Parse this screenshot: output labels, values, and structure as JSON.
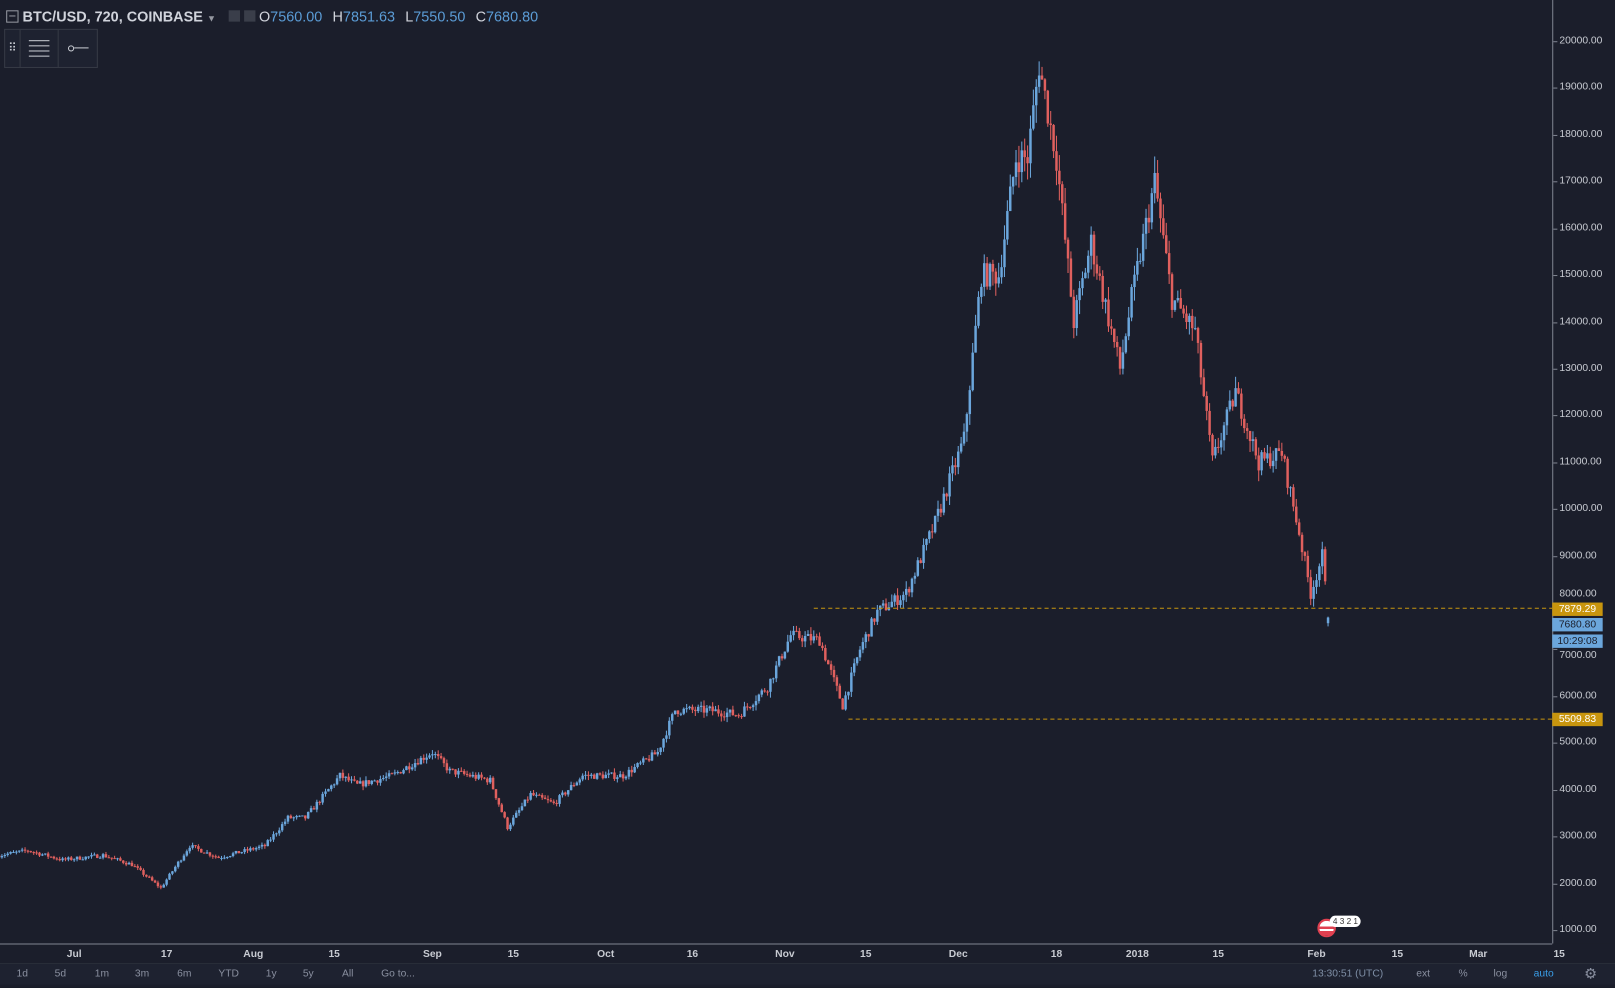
{
  "header": {
    "symbol": "BTC/USD, 720, COINBASE",
    "o_label": "O",
    "o": "7560.00",
    "h_label": "H",
    "h": "7851.63",
    "l_label": "L",
    "l": "7550.50",
    "c_label": "C",
    "c": "7680.80"
  },
  "price_axis": {
    "labels": [
      "20000.00",
      "19000.00",
      "18000.00",
      "17000.00",
      "16000.00",
      "15000.00",
      "14000.00",
      "13000.00",
      "12000.00",
      "11000.00",
      "10000.00",
      "9000.00",
      "8000.00",
      "7000.00",
      "6000.00",
      "5000.00",
      "4000.00",
      "3000.00",
      "2000.00",
      "1000.00"
    ],
    "tags": [
      {
        "text": "7879.29",
        "value": 7879.29,
        "color": "#c8950e"
      },
      {
        "text": "7680.80",
        "value": 7680.8,
        "color": "#6ba6dc"
      },
      {
        "text": "10:29:08",
        "value": 7400,
        "color": "#6ba6dc"
      },
      {
        "text": "5509.83",
        "value": 5509.83,
        "color": "#c8950e"
      }
    ]
  },
  "time_axis": {
    "labels": [
      {
        "t": "Jul",
        "d": "2017-07-01"
      },
      {
        "t": "17",
        "d": "2017-07-17"
      },
      {
        "t": "Aug",
        "d": "2017-08-01"
      },
      {
        "t": "15",
        "d": "2017-08-15"
      },
      {
        "t": "Sep",
        "d": "2017-09-01"
      },
      {
        "t": "15",
        "d": "2017-09-15"
      },
      {
        "t": "Oct",
        "d": "2017-10-01"
      },
      {
        "t": "16",
        "d": "2017-10-16"
      },
      {
        "t": "Nov",
        "d": "2017-11-01"
      },
      {
        "t": "15",
        "d": "2017-11-15"
      },
      {
        "t": "Dec",
        "d": "2017-12-01"
      },
      {
        "t": "18",
        "d": "2017-12-18"
      },
      {
        "t": "2018",
        "d": "2018-01-01"
      },
      {
        "t": "15",
        "d": "2018-01-15"
      },
      {
        "t": "Feb",
        "d": "2018-02-01"
      },
      {
        "t": "15",
        "d": "2018-02-15"
      },
      {
        "t": "Mar",
        "d": "2018-03-01"
      },
      {
        "t": "15",
        "d": "2018-03-15"
      }
    ]
  },
  "bottom": {
    "ranges": [
      "1d",
      "5d",
      "1m",
      "3m",
      "6m",
      "YTD",
      "1y",
      "5y",
      "All",
      "Go to..."
    ],
    "clock": "13:30:51 (UTC)",
    "ext": "ext",
    "pct": "%",
    "log": "log",
    "auto": "auto"
  },
  "events_badge": "4 3 2 1",
  "colors": {
    "up": "#6ba6dc",
    "down": "#e0605e",
    "level": "#c8950e",
    "bg": "#1b1e2b"
  },
  "chart_data": {
    "type": "candlestick",
    "interval_minutes": 720,
    "ylim": [
      800,
      20400
    ],
    "levels": [
      {
        "value": 7879.29,
        "from": "2017-11-06"
      },
      {
        "value": 5509.83,
        "from": "2017-11-12"
      }
    ],
    "price_path": [
      [
        "2017-06-18",
        2600
      ],
      [
        "2017-06-23",
        2700
      ],
      [
        "2017-06-29",
        2500
      ],
      [
        "2017-07-06",
        2600
      ],
      [
        "2017-07-11",
        2400
      ],
      [
        "2017-07-16",
        1900
      ],
      [
        "2017-07-21",
        2800
      ],
      [
        "2017-07-26",
        2550
      ],
      [
        "2017-08-03",
        2800
      ],
      [
        "2017-08-07",
        3400
      ],
      [
        "2017-08-10",
        3400
      ],
      [
        "2017-08-16",
        4300
      ],
      [
        "2017-08-19",
        4100
      ],
      [
        "2017-08-25",
        4300
      ],
      [
        "2017-09-01",
        4800
      ],
      [
        "2017-09-04",
        4400
      ],
      [
        "2017-09-11",
        4200
      ],
      [
        "2017-09-14",
        3200
      ],
      [
        "2017-09-18",
        3900
      ],
      [
        "2017-09-22",
        3700
      ],
      [
        "2017-09-27",
        4300
      ],
      [
        "2017-10-04",
        4300
      ],
      [
        "2017-10-10",
        4800
      ],
      [
        "2017-10-13",
        5700
      ],
      [
        "2017-10-19",
        5700
      ],
      [
        "2017-10-24",
        5600
      ],
      [
        "2017-10-29",
        6200
      ],
      [
        "2017-11-02",
        7300
      ],
      [
        "2017-11-07",
        7200
      ],
      [
        "2017-11-11",
        5800
      ],
      [
        "2017-11-14",
        7000
      ],
      [
        "2017-11-17",
        7800
      ],
      [
        "2017-11-22",
        8200
      ],
      [
        "2017-11-27",
        9700
      ],
      [
        "2017-12-02",
        11500
      ],
      [
        "2017-12-05",
        15000
      ],
      [
        "2017-12-08",
        15000
      ],
      [
        "2017-12-11",
        17500
      ],
      [
        "2017-12-13",
        17500
      ],
      [
        "2017-12-15",
        19500
      ],
      [
        "2017-12-18",
        17500
      ],
      [
        "2017-12-21",
        14000
      ],
      [
        "2017-12-24",
        15700
      ],
      [
        "2017-12-29",
        13000
      ],
      [
        "2017-12-31",
        14500
      ],
      [
        "2018-01-04",
        17000
      ],
      [
        "2018-01-07",
        14500
      ],
      [
        "2018-01-11",
        13800
      ],
      [
        "2018-01-14",
        11000
      ],
      [
        "2018-01-18",
        12500
      ],
      [
        "2018-01-22",
        11000
      ],
      [
        "2018-01-26",
        11200
      ],
      [
        "2018-01-29",
        9500
      ],
      [
        "2018-01-31",
        8200
      ],
      [
        "2018-02-02",
        9000
      ],
      [
        "2018-02-03",
        7680.8
      ]
    ]
  }
}
